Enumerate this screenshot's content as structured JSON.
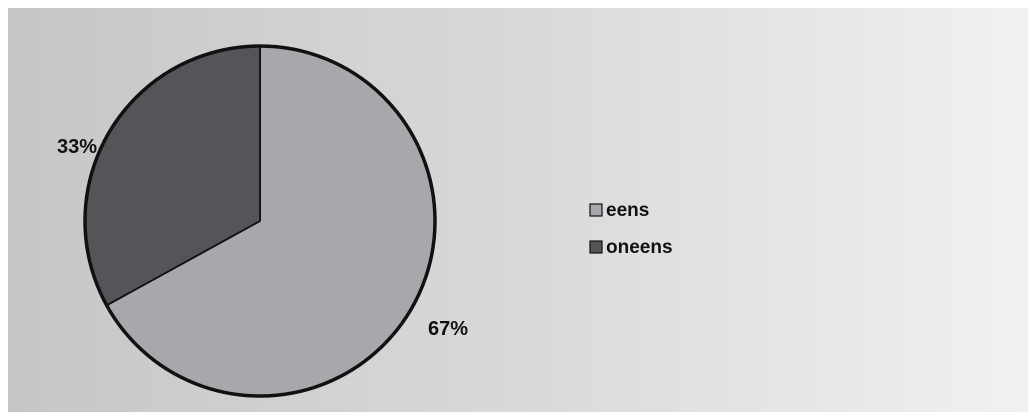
{
  "chart_data": {
    "type": "pie",
    "title": "",
    "start_angle_deg": 0,
    "direction": "clockwise",
    "slices": [
      {
        "label": "eens",
        "value": 67,
        "display": "67%",
        "color": "#a7a8ab"
      },
      {
        "label": "oneens",
        "value": 33,
        "display": "33%",
        "color": "#545558"
      }
    ],
    "legend": {
      "position": "right",
      "items": [
        "eens",
        "oneens"
      ]
    },
    "border_color": "#111111"
  }
}
